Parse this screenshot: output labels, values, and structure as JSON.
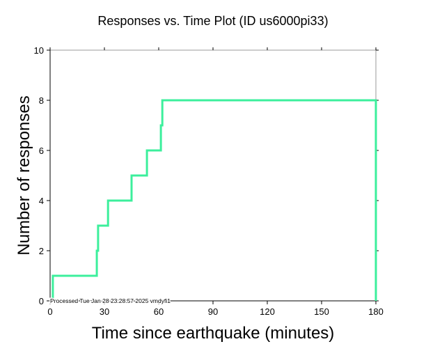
{
  "chart_data": {
    "type": "line",
    "step": "post",
    "title": "Responses vs. Time Plot (ID us6000pi33)",
    "xlabel": "Time since earthquake (minutes)",
    "ylabel": "Number of responses",
    "xlim": [
      0,
      180
    ],
    "ylim": [
      0,
      10
    ],
    "xticks": [
      0,
      30,
      60,
      90,
      120,
      150,
      180
    ],
    "yticks": [
      0,
      2,
      4,
      6,
      8,
      10
    ],
    "grid": false,
    "annotation": "Processed Tue Jan 28 23:28:57 2025 vmdyfi1",
    "series": [
      {
        "x": [
          1.5,
          25.8,
          26.5,
          32,
          45,
          53.5,
          61.2,
          62,
          180
        ],
        "y": [
          1,
          2,
          3,
          4,
          5,
          6,
          7,
          8,
          0
        ],
        "color": "#3cef9c"
      }
    ]
  }
}
